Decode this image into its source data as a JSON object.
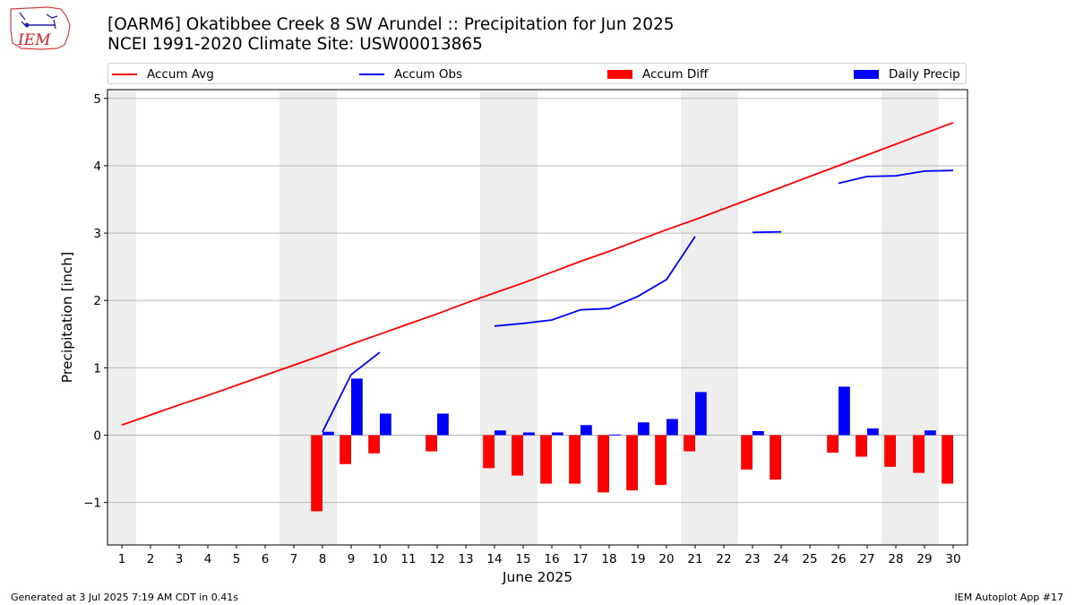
{
  "header": {
    "logo_text": "IEM",
    "title_line1": "[OARM6] Okatibbee Creek 8 SW Arundel :: Precipitation for Jun 2025",
    "title_line2": "NCEI 1991-2020 Climate Site: USW00013865"
  },
  "legend": {
    "items": [
      {
        "label": "Accum Avg",
        "color": "#ff0000",
        "kind": "line"
      },
      {
        "label": "Accum Obs",
        "color": "#0000ff",
        "kind": "line"
      },
      {
        "label": "Accum Diff",
        "color": "#ff0000",
        "kind": "bar"
      },
      {
        "label": "Daily Precip",
        "color": "#0000ff",
        "kind": "bar"
      }
    ]
  },
  "footer": {
    "left": "Generated at 3 Jul 2025 7:19 AM CDT in 0.41s",
    "right": "IEM Autoplot App #17"
  },
  "chart_data": {
    "type": "bar",
    "xlabel": "June 2025",
    "ylabel": "Precipitation [inch]",
    "xlim": [
      0.5,
      30.5
    ],
    "ylim": [
      -1.63,
      5.13
    ],
    "xticks": [
      1,
      2,
      3,
      4,
      5,
      6,
      7,
      8,
      9,
      10,
      11,
      12,
      13,
      14,
      15,
      16,
      17,
      18,
      19,
      20,
      21,
      22,
      23,
      24,
      25,
      26,
      27,
      28,
      29,
      30
    ],
    "yticks": [
      -1,
      0,
      1,
      2,
      3,
      4,
      5
    ],
    "grid": "horizontal",
    "legend_position": "top",
    "weekend_shading": [
      [
        0.5,
        1.5
      ],
      [
        6.5,
        8.5
      ],
      [
        13.5,
        15.5
      ],
      [
        20.5,
        22.5
      ],
      [
        27.5,
        29.5
      ]
    ],
    "shade_color": "#eeeeee",
    "days": [
      1,
      2,
      3,
      4,
      5,
      6,
      7,
      8,
      9,
      10,
      11,
      12,
      13,
      14,
      15,
      16,
      17,
      18,
      19,
      20,
      21,
      22,
      23,
      24,
      25,
      26,
      27,
      28,
      29,
      30
    ],
    "series": [
      {
        "name": "Accum Avg",
        "kind": "line",
        "color": "#ff0000",
        "values": [
          0.15,
          0.3,
          0.45,
          0.59,
          0.74,
          0.89,
          1.04,
          1.19,
          1.35,
          1.5,
          1.65,
          1.8,
          1.96,
          2.11,
          2.26,
          2.42,
          2.58,
          2.73,
          2.89,
          3.05,
          3.2,
          3.36,
          3.52,
          3.68,
          3.84,
          4.0,
          4.16,
          4.32,
          4.48,
          4.64
        ]
      },
      {
        "name": "Accum Obs",
        "kind": "line",
        "color": "#0000ff",
        "values": [
          null,
          null,
          null,
          null,
          null,
          null,
          null,
          0.05,
          0.9,
          1.23,
          null,
          null,
          null,
          1.62,
          1.66,
          1.71,
          1.86,
          1.88,
          2.06,
          2.31,
          2.95,
          null,
          3.01,
          3.02,
          null,
          3.74,
          3.84,
          3.85,
          3.92,
          3.93
        ]
      },
      {
        "name": "Accum Diff",
        "kind": "bar",
        "color": "#ff0000",
        "values": [
          null,
          null,
          null,
          null,
          null,
          null,
          null,
          -1.13,
          -0.43,
          -0.27,
          null,
          -0.24,
          null,
          -0.49,
          -0.6,
          -0.72,
          -0.72,
          -0.85,
          -0.82,
          -0.74,
          -0.24,
          null,
          -0.51,
          -0.66,
          null,
          -0.26,
          -0.32,
          -0.47,
          -0.56,
          -0.72
        ]
      },
      {
        "name": "Daily Precip",
        "kind": "bar",
        "color": "#0000ff",
        "values": [
          null,
          null,
          null,
          null,
          null,
          null,
          null,
          0.05,
          0.84,
          0.32,
          null,
          0.32,
          null,
          0.07,
          0.04,
          0.04,
          0.15,
          0.01,
          0.19,
          0.24,
          0.64,
          null,
          0.06,
          null,
          null,
          0.72,
          0.1,
          null,
          0.07,
          null
        ]
      }
    ]
  }
}
